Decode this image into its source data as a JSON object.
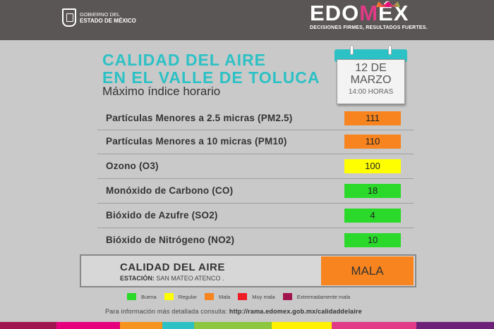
{
  "header": {
    "gov_line1": "GOBIERNO DEL",
    "gov_line2": "ESTADO DE MÉXICO",
    "brand_prefix": "EDO",
    "brand_m": "M",
    "brand_suffix": "ÉX",
    "slogan": "DECISIONES FIRMES, RESULTADOS FUERTES."
  },
  "title": {
    "line1": "CALIDAD DEL AIRE",
    "line2": "EN EL VALLE DE TOLUCA",
    "subtitle": "Máximo índice horario"
  },
  "calendar": {
    "day": "12 DE",
    "month": "MARZO",
    "time": "14:00 HORAS"
  },
  "pollutants": [
    {
      "name": "Partículas Menores a 2.5 micras (PM2.5)",
      "value": "111",
      "color": "#f7841e"
    },
    {
      "name": "Partículas Menores a 10 micras (PM10)",
      "value": "110",
      "color": "#f7841e"
    },
    {
      "name": "Ozono (O3)",
      "value": "100",
      "color": "#ffff00"
    },
    {
      "name": "Monóxido de Carbono (CO)",
      "value": "18",
      "color": "#2bd92b"
    },
    {
      "name": "Bióxido de Azufre (SO2)",
      "value": "4",
      "color": "#2bd92b"
    },
    {
      "name": "Bióxido de Nitrógeno (NO2)",
      "value": "10",
      "color": "#2bd92b"
    }
  ],
  "summary": {
    "label": "CALIDAD DEL AIRE",
    "station_label": "ESTACIÓN:",
    "station_name": "SAN MATEO ATENCO .",
    "value": "MALA",
    "color": "#f7841e"
  },
  "legend": [
    {
      "label": "Buena",
      "color": "#2bd92b"
    },
    {
      "label": "Regular",
      "color": "#ffff00"
    },
    {
      "label": "Mala",
      "color": "#f7841e"
    },
    {
      "label": "Muy mala",
      "color": "#ee1c25"
    },
    {
      "label": "Extremadamente mala",
      "color": "#a0154e"
    }
  ],
  "footer": {
    "text": "Para información más detallada consulta:",
    "url": "http://rama.edomex.gob.mx/calidaddelaire"
  },
  "stripe_colors": [
    "#a0154e",
    "#e6007e",
    "#f7941d",
    "#2cc1c5",
    "#8dc63f",
    "#fff200",
    "#e13a86",
    "#6d2077"
  ]
}
